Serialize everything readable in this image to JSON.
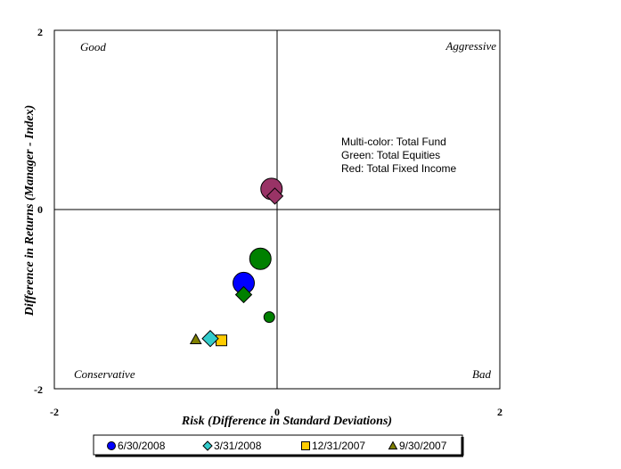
{
  "chart_data": {
    "type": "scatter",
    "xlabel": "Risk (Difference in Standard Deviations)",
    "ylabel": "Difference in Returns (Manager - Index)",
    "xlim": [
      -2,
      2
    ],
    "ylim": [
      -2,
      2
    ],
    "x_ticks": [
      "-2",
      "0",
      "2"
    ],
    "y_ticks": [
      "2",
      "0",
      "-2"
    ],
    "grid": false,
    "quadrant_labels": {
      "top_left": "Good",
      "top_right": "Aggressive",
      "bottom_left": "Conservative",
      "bottom_right": "Bad"
    },
    "notes": [
      "Multi-color: Total Fund",
      "Green: Total Equities",
      "Red: Total Fixed Income"
    ],
    "legend_position": "bottom",
    "colors": {
      "total_fund": {
        "6/30/2008": "#0000ff",
        "3/31/2008": "#33cccc",
        "12/31/2007": "#ffcc00",
        "9/30/2007": "#808000"
      },
      "total_equities": "#008000",
      "total_fixed_income": "#993366"
    },
    "series": [
      {
        "name": "6/30/2008",
        "marker": "circle",
        "points": [
          {
            "x": -0.3,
            "y": -0.82,
            "group": "total_fund",
            "size": "large"
          },
          {
            "x": -0.15,
            "y": -0.55,
            "group": "total_equities",
            "size": "large"
          },
          {
            "x": -0.05,
            "y": 0.23,
            "group": "total_fixed_income",
            "size": "large"
          },
          {
            "x": -0.07,
            "y": -1.2,
            "group": "total_equities",
            "size": "small"
          }
        ]
      },
      {
        "name": "3/31/2008",
        "marker": "diamond",
        "points": [
          {
            "x": -0.6,
            "y": -1.44,
            "group": "total_fund"
          },
          {
            "x": -0.3,
            "y": -0.95,
            "group": "total_equities"
          },
          {
            "x": -0.02,
            "y": 0.15,
            "group": "total_fixed_income"
          }
        ]
      },
      {
        "name": "12/31/2007",
        "marker": "square",
        "points": [
          {
            "x": -0.5,
            "y": -1.46,
            "group": "total_fund"
          },
          {
            "x": -0.03,
            "y": 0.22,
            "group": "total_fixed_income"
          }
        ]
      },
      {
        "name": "9/30/2007",
        "marker": "triangle",
        "points": [
          {
            "x": -0.73,
            "y": -1.45,
            "group": "total_fund"
          },
          {
            "x": -0.32,
            "y": -0.84,
            "group": "total_equities"
          },
          {
            "x": -0.04,
            "y": 0.17,
            "group": "total_fixed_income"
          }
        ]
      }
    ]
  }
}
